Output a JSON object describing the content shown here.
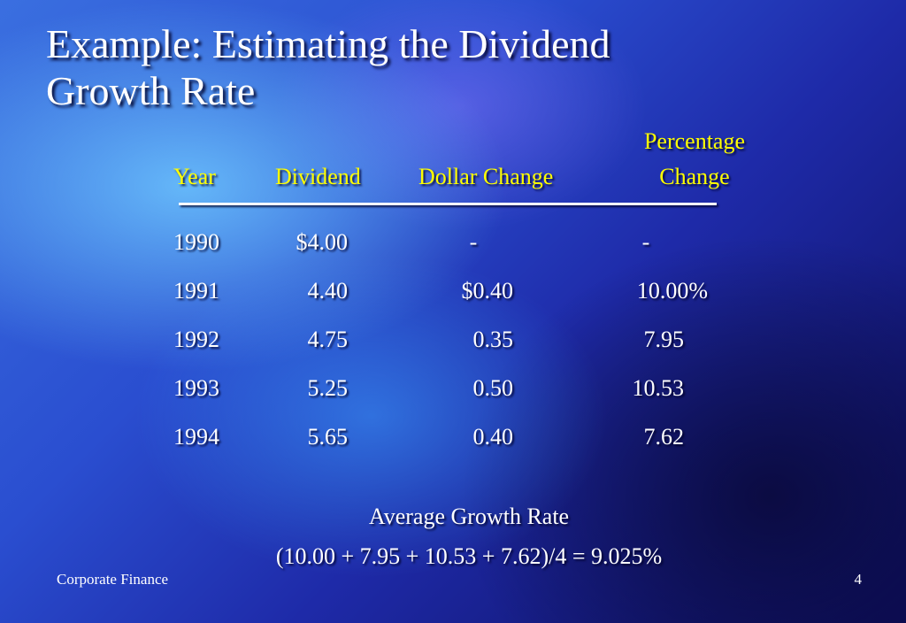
{
  "slide": {
    "title_lines": [
      "Example: Estimating the Dividend",
      "Growth Rate"
    ],
    "table": {
      "headers": {
        "year": "Year",
        "dividend": "Dividend",
        "dollar_change": "Dollar Change",
        "percentage_change": [
          "Percentage",
          "Change"
        ]
      },
      "rows": [
        {
          "year": "1990",
          "dividend": "$4.00",
          "dollar_change": "-",
          "percentage_change": "-"
        },
        {
          "year": "1991",
          "dividend": "4.40",
          "dollar_change": "$0.40",
          "percentage_change": "10.00%"
        },
        {
          "year": "1992",
          "dividend": "4.75",
          "dollar_change": "0.35",
          "percentage_change": "7.95"
        },
        {
          "year": "1993",
          "dividend": "5.25",
          "dollar_change": "0.50",
          "percentage_change": "10.53"
        },
        {
          "year": "1994",
          "dividend": "5.65",
          "dollar_change": "0.40",
          "percentage_change": "7.62"
        }
      ]
    },
    "summary": {
      "label": "Average Growth Rate",
      "formula": "(10.00 + 7.95 + 10.53 + 7.62)/4 = 9.025%"
    },
    "footer": {
      "course": "Corporate Finance",
      "page_number": "4"
    }
  }
}
